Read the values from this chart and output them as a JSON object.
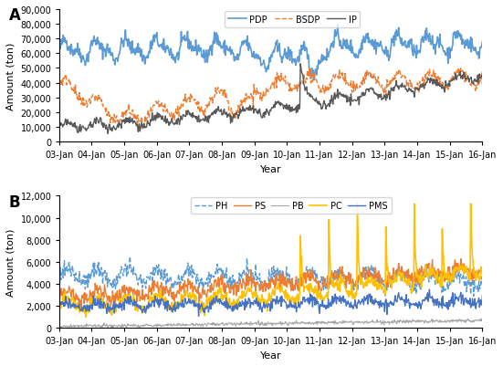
{
  "panel_A": {
    "title": "A",
    "ylabel": "Amount (ton)",
    "xlabel": "Year",
    "ylim": [
      0,
      90000
    ],
    "yticks": [
      0,
      10000,
      20000,
      30000,
      40000,
      50000,
      60000,
      70000,
      80000,
      90000
    ],
    "series": {
      "PDP": {
        "color": "#5B9BD5",
        "linestyle": "-",
        "linewidth": 1.2
      },
      "BSDP": {
        "color": "#ED7D31",
        "linestyle": "--",
        "linewidth": 1.0
      },
      "IP": {
        "color": "#595959",
        "linestyle": "-",
        "linewidth": 1.0
      }
    }
  },
  "panel_B": {
    "title": "B",
    "ylabel": "Amount (ton)",
    "xlabel": "Year",
    "ylim": [
      0,
      12000
    ],
    "yticks": [
      0,
      2000,
      4000,
      6000,
      8000,
      10000,
      12000
    ],
    "series": {
      "PH": {
        "color": "#5B9BD5",
        "linestyle": "--",
        "linewidth": 1.0
      },
      "PS": {
        "color": "#ED7D31",
        "linestyle": "-",
        "linewidth": 1.0
      },
      "PB": {
        "color": "#A5A5A5",
        "linestyle": "-",
        "linewidth": 0.8
      },
      "PC": {
        "color": "#FFC000",
        "linestyle": "-",
        "linewidth": 1.2
      },
      "PMS": {
        "color": "#4472C4",
        "linestyle": "-",
        "linewidth": 1.0
      }
    }
  },
  "xtick_labels": [
    "03-Jan",
    "04-Jan",
    "05-Jan",
    "06-Jan",
    "07-Jan",
    "08-Jan",
    "09-Jan",
    "10-Jan",
    "11-Jan",
    "12-Jan",
    "13-Jan",
    "14-Jan",
    "15-Jan",
    "16-Jan"
  ],
  "n_points": 728,
  "background_color": "#ffffff",
  "font_size": 8
}
